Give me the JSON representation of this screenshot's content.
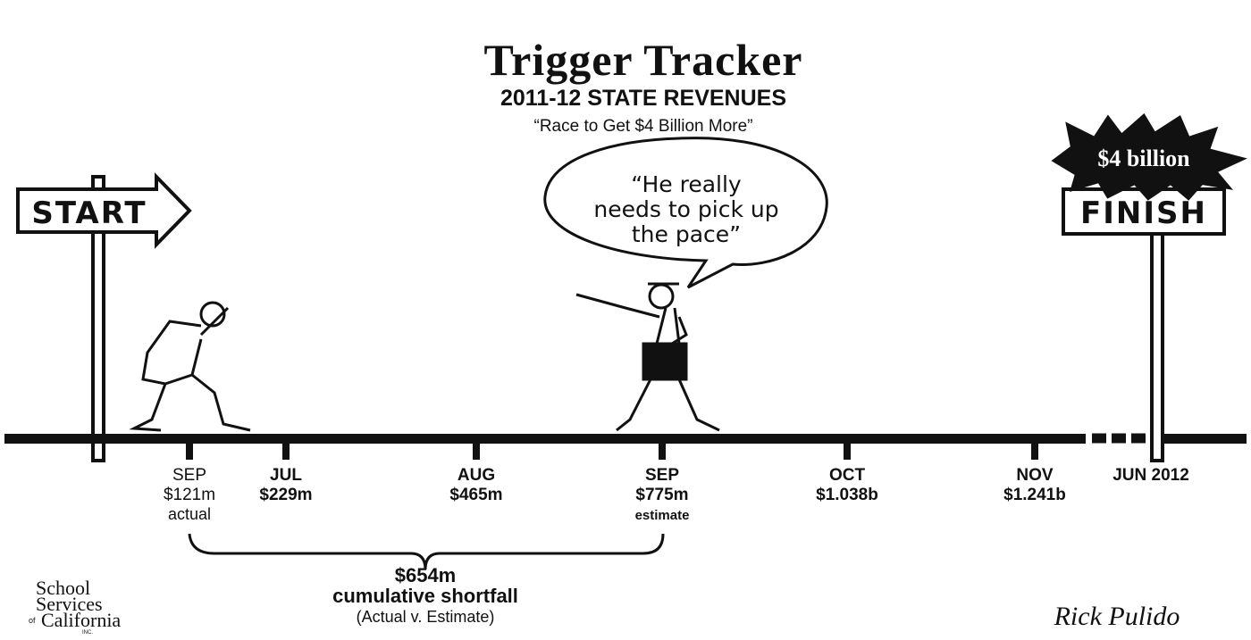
{
  "header": {
    "title": "Trigger Tracker",
    "subtitle": "2011-12 STATE REVENUES",
    "tagline": "“Race to Get $4 Billion More”"
  },
  "signs": {
    "start": "START",
    "finish": "FINISH",
    "goal": "$4 billion"
  },
  "speech": {
    "lines": [
      "“He really",
      "needs to pick up",
      "the pace”"
    ]
  },
  "timeline": [
    {
      "month": "SEP",
      "amount": "$121m",
      "note": "actual"
    },
    {
      "month": "JUL",
      "amount": "$229m"
    },
    {
      "month": "AUG",
      "amount": "$465m"
    },
    {
      "month": "SEP",
      "amount": "$775m",
      "note": "estimate"
    },
    {
      "month": "OCT",
      "amount": "$1.038b"
    },
    {
      "month": "NOV",
      "amount": "$1.241b"
    },
    {
      "month": "JUN 2012"
    }
  ],
  "shortfall": {
    "amount": "$654m",
    "label": "cumulative shortfall",
    "note": "(Actual v. Estimate)"
  },
  "logo": {
    "lines": [
      "School",
      "Services",
      "California"
    ],
    "of": "of",
    "inc": "INC."
  },
  "signature": "Rick Pulido"
}
